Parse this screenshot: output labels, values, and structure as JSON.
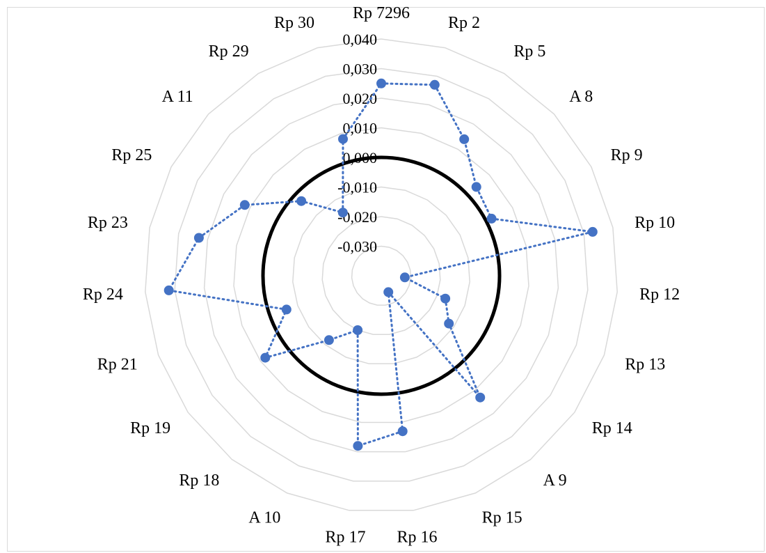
{
  "chart_data": {
    "type": "radar",
    "title": "",
    "categories": [
      "Rp 7296",
      "Rp 2",
      "Rp 5",
      "A 8",
      "Rp 9",
      "Rp 10",
      "Rp 12",
      "Rp 13",
      "Rp 14",
      "A 9",
      "Rp 15",
      "Rp 16",
      "Rp 17",
      "A 10",
      "Rp 18",
      "Rp 19",
      "Rp 21",
      "Rp 24",
      "Rp 23",
      "Rp 25",
      "A 11",
      "Rp 29",
      "Rp 30"
    ],
    "series": [
      {
        "values": [
          0.025,
          0.027,
          0.014,
          0.004,
          0.002,
          0.033,
          -0.032,
          -0.017,
          -0.012,
          0.013,
          -0.034,
          0.013,
          0.018,
          -0.02,
          -0.012,
          0.008,
          -0.006,
          0.032,
          0.023,
          0.012,
          -0.003,
          -0.015,
          0.008
        ],
        "color": "#4472C4",
        "line_style": "dotted",
        "markers": true
      }
    ],
    "rlim": [
      -0.04,
      0.04
    ],
    "tick_values": [
      -0.03,
      -0.02,
      -0.01,
      0.0,
      0.01,
      0.02,
      0.03,
      0.04
    ],
    "tick_labels": [
      "-0,030",
      "-0,020",
      "-0,010",
      "0,000",
      "0,010",
      "0,020",
      "0,030",
      "0,040"
    ],
    "reference_circle_value": 0.0,
    "reference_circle_color": "#000000",
    "grid": true,
    "grid_color": "#d9d9d9",
    "legend": "none"
  }
}
